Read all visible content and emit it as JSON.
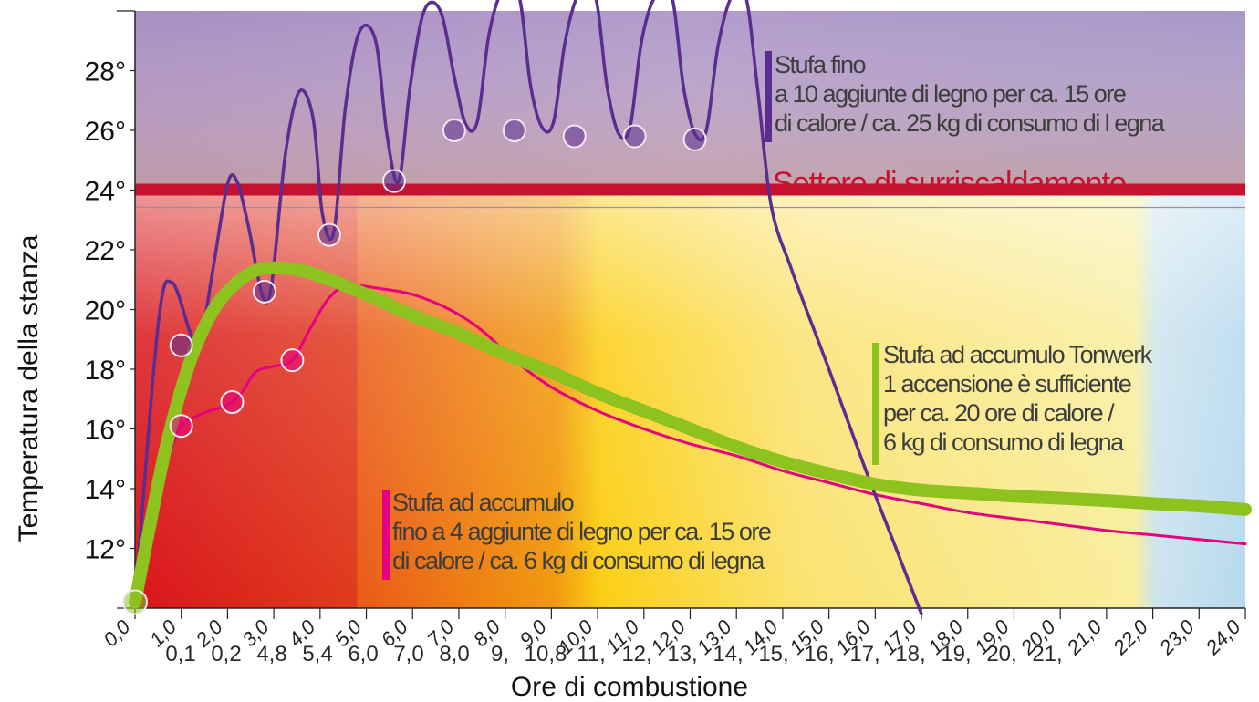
{
  "chart_data": {
    "type": "line",
    "xlabel": "Ore di combustione",
    "ylabel": "Temperatura della stanza",
    "x_ticks": [
      "0,0",
      "1,0",
      "2,0",
      "3,0",
      "4,0",
      "5,0",
      "6,0",
      "7,0",
      "8,0",
      "9,0",
      "10,0",
      "11,0",
      "12,0",
      "13,0",
      "14,0",
      "15,0",
      "16,0",
      "17,0",
      "18,0",
      "19,0",
      "20,0",
      "21,0",
      "22,0",
      "23,0",
      "24,0"
    ],
    "x_ticks_ghost": [
      "0,1",
      "0,2",
      "4,8",
      "5,4",
      "6,0",
      "7,0",
      "8,0",
      "9,",
      "10,8",
      "11,",
      "12,",
      "13,",
      "14,",
      "15,",
      "16,",
      "17,",
      "18,",
      "19,",
      "20,",
      "21,"
    ],
    "y_ticks": [
      "12°",
      "14°",
      "16°",
      "18°",
      "20°",
      "22°",
      "24°",
      "26°",
      "28°"
    ],
    "xlim": [
      0,
      24
    ],
    "ylim": [
      10,
      30
    ],
    "overheat_threshold": 24,
    "overheat_label": "Settore di surriscaldamento",
    "series": [
      {
        "key": "fino",
        "color": "#5b2d90",
        "label_lines": [
          "Stufa fino",
          "a 10 aggiunte di legno per ca. 15 ore",
          "di calore / ca. 25 kg di consumo di l egna"
        ],
        "markers": [
          [
            1.0,
            18.8
          ],
          [
            2.8,
            20.6
          ],
          [
            4.2,
            22.5
          ],
          [
            5.6,
            24.3
          ],
          [
            6.9,
            26.0
          ],
          [
            8.2,
            26.0
          ],
          [
            9.5,
            25.8
          ],
          [
            10.8,
            25.8
          ],
          [
            12.1,
            25.7
          ]
        ],
        "points": [
          [
            0,
            10.2
          ],
          [
            0.5,
            19.5
          ],
          [
            0.8,
            20.9
          ],
          [
            1.2,
            19.2
          ],
          [
            1.4,
            18.8
          ],
          [
            1.7,
            21.5
          ],
          [
            2.0,
            24.2
          ],
          [
            2.2,
            24.3
          ],
          [
            2.45,
            22.8
          ],
          [
            2.75,
            20.5
          ],
          [
            2.95,
            20.8
          ],
          [
            3.25,
            25.2
          ],
          [
            3.55,
            27.3
          ],
          [
            3.85,
            26.4
          ],
          [
            4.05,
            23.2
          ],
          [
            4.3,
            22.6
          ],
          [
            4.55,
            26.8
          ],
          [
            4.85,
            29.3
          ],
          [
            5.2,
            29.0
          ],
          [
            5.45,
            25.8
          ],
          [
            5.7,
            24.3
          ],
          [
            5.95,
            27.5
          ],
          [
            6.25,
            30.0
          ],
          [
            6.6,
            30.0
          ],
          [
            6.9,
            27.8
          ],
          [
            7.15,
            26.2
          ],
          [
            7.4,
            26.3
          ],
          [
            7.65,
            29.2
          ],
          [
            7.95,
            30.7
          ],
          [
            8.3,
            30.5
          ],
          [
            8.55,
            27.5
          ],
          [
            8.8,
            26.1
          ],
          [
            9.05,
            26.3
          ],
          [
            9.3,
            29.0
          ],
          [
            9.6,
            30.6
          ],
          [
            9.95,
            30.5
          ],
          [
            10.2,
            27.5
          ],
          [
            10.45,
            25.9
          ],
          [
            10.7,
            26.1
          ],
          [
            10.95,
            29.0
          ],
          [
            11.25,
            30.5
          ],
          [
            11.6,
            30.5
          ],
          [
            11.85,
            27.5
          ],
          [
            12.1,
            25.9
          ],
          [
            12.35,
            26.0
          ],
          [
            12.6,
            28.8
          ],
          [
            12.9,
            30.5
          ],
          [
            13.2,
            30.5
          ],
          [
            13.45,
            27.5
          ],
          [
            13.75,
            23.5
          ],
          [
            14.2,
            21.3
          ],
          [
            15.0,
            18.0
          ],
          [
            15.8,
            14.6
          ],
          [
            16.5,
            11.8
          ],
          [
            17.0,
            9.8
          ]
        ]
      },
      {
        "key": "accumulo",
        "color": "#e5007e",
        "label_lines": [
          "Stufa ad accumulo",
          "fino a 4 aggiunte di legno per ca. 15 ore",
          "di calore / ca. 6 kg di consumo di legna"
        ],
        "markers": [
          [
            1.0,
            16.1
          ],
          [
            2.1,
            16.9
          ],
          [
            3.4,
            18.3
          ]
        ],
        "points": [
          [
            0,
            10.2
          ],
          [
            0.4,
            13.2
          ],
          [
            0.8,
            15.4
          ],
          [
            1.0,
            16.1
          ],
          [
            1.3,
            16.4
          ],
          [
            1.6,
            16.6
          ],
          [
            2.0,
            16.8
          ],
          [
            2.3,
            17.2
          ],
          [
            2.6,
            17.9
          ],
          [
            3.0,
            18.1
          ],
          [
            3.4,
            18.3
          ],
          [
            3.8,
            19.4
          ],
          [
            4.2,
            20.4
          ],
          [
            4.6,
            20.8
          ],
          [
            5.3,
            20.7
          ],
          [
            6.0,
            20.5
          ],
          [
            6.8,
            20.0
          ],
          [
            7.5,
            19.3
          ],
          [
            8.2,
            18.3
          ],
          [
            9.0,
            17.4
          ],
          [
            10.0,
            16.6
          ],
          [
            11.0,
            16.0
          ],
          [
            12.0,
            15.5
          ],
          [
            13.0,
            15.1
          ],
          [
            14.0,
            14.6
          ],
          [
            15.0,
            14.2
          ],
          [
            16.0,
            13.8
          ],
          [
            17.0,
            13.5
          ],
          [
            18.0,
            13.2
          ],
          [
            19.0,
            13.0
          ],
          [
            20.0,
            12.8
          ],
          [
            21.0,
            12.6
          ],
          [
            22.0,
            12.45
          ],
          [
            23.0,
            12.3
          ],
          [
            24.0,
            12.15
          ]
        ]
      },
      {
        "key": "tonwerk",
        "color": "#8dc21f",
        "label_lines": [
          "Stufa ad accumulo Tonwerk",
          "1 accensione è sufficiente",
          "per ca. 20 ore di calore /",
          "6 kg di consumo di legna"
        ],
        "markers": [
          [
            0,
            10.2
          ]
        ],
        "points": [
          [
            0,
            10.2
          ],
          [
            0.3,
            12.6
          ],
          [
            0.7,
            15.6
          ],
          [
            1.2,
            18.3
          ],
          [
            1.7,
            20.0
          ],
          [
            2.2,
            20.9
          ],
          [
            2.6,
            21.3
          ],
          [
            3.0,
            21.4
          ],
          [
            3.6,
            21.3
          ],
          [
            4.2,
            21.0
          ],
          [
            5.0,
            20.5
          ],
          [
            6.0,
            19.8
          ],
          [
            7.0,
            19.2
          ],
          [
            8.0,
            18.5
          ],
          [
            9.0,
            17.9
          ],
          [
            10.0,
            17.2
          ],
          [
            11.0,
            16.6
          ],
          [
            12.0,
            16.0
          ],
          [
            13.0,
            15.4
          ],
          [
            14.0,
            14.9
          ],
          [
            15.0,
            14.5
          ],
          [
            16.0,
            14.15
          ],
          [
            17.0,
            13.95
          ],
          [
            18.0,
            13.85
          ],
          [
            19.0,
            13.75
          ],
          [
            20.0,
            13.68
          ],
          [
            21.0,
            13.6
          ],
          [
            22.0,
            13.5
          ],
          [
            23.0,
            13.42
          ],
          [
            24.0,
            13.3
          ]
        ]
      }
    ]
  }
}
